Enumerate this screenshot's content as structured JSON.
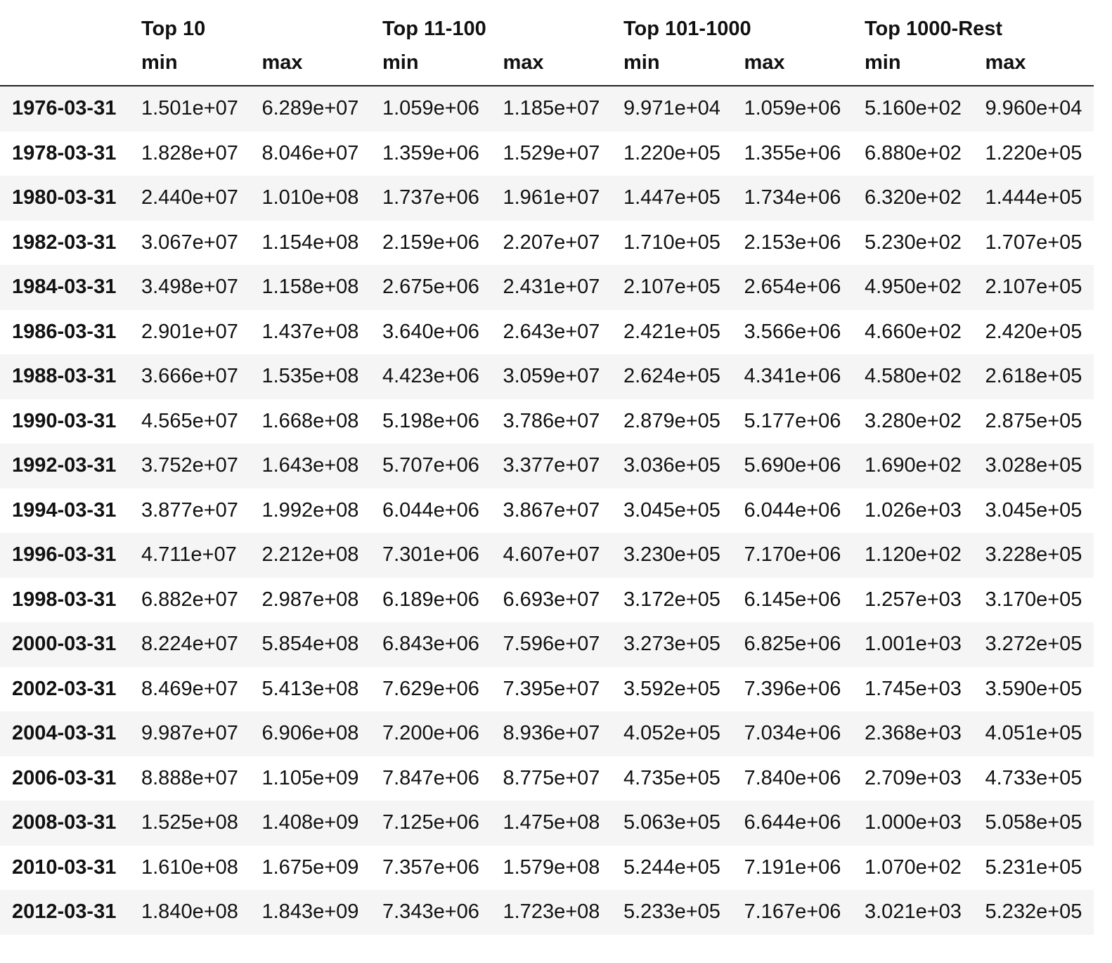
{
  "table": {
    "groups": [
      "Top 10",
      "Top 11-100",
      "Top 101-1000",
      "Top 1000-Rest"
    ],
    "subcolumns": [
      "min",
      "max",
      "min",
      "max",
      "min",
      "max",
      "min",
      "max"
    ],
    "rows": [
      {
        "index": "1976-03-31",
        "cells": [
          "1.501e+07",
          "6.289e+07",
          "1.059e+06",
          "1.185e+07",
          "9.971e+04",
          "1.059e+06",
          "5.160e+02",
          "9.960e+04"
        ]
      },
      {
        "index": "1978-03-31",
        "cells": [
          "1.828e+07",
          "8.046e+07",
          "1.359e+06",
          "1.529e+07",
          "1.220e+05",
          "1.355e+06",
          "6.880e+02",
          "1.220e+05"
        ]
      },
      {
        "index": "1980-03-31",
        "cells": [
          "2.440e+07",
          "1.010e+08",
          "1.737e+06",
          "1.961e+07",
          "1.447e+05",
          "1.734e+06",
          "6.320e+02",
          "1.444e+05"
        ]
      },
      {
        "index": "1982-03-31",
        "cells": [
          "3.067e+07",
          "1.154e+08",
          "2.159e+06",
          "2.207e+07",
          "1.710e+05",
          "2.153e+06",
          "5.230e+02",
          "1.707e+05"
        ]
      },
      {
        "index": "1984-03-31",
        "cells": [
          "3.498e+07",
          "1.158e+08",
          "2.675e+06",
          "2.431e+07",
          "2.107e+05",
          "2.654e+06",
          "4.950e+02",
          "2.107e+05"
        ]
      },
      {
        "index": "1986-03-31",
        "cells": [
          "2.901e+07",
          "1.437e+08",
          "3.640e+06",
          "2.643e+07",
          "2.421e+05",
          "3.566e+06",
          "4.660e+02",
          "2.420e+05"
        ]
      },
      {
        "index": "1988-03-31",
        "cells": [
          "3.666e+07",
          "1.535e+08",
          "4.423e+06",
          "3.059e+07",
          "2.624e+05",
          "4.341e+06",
          "4.580e+02",
          "2.618e+05"
        ]
      },
      {
        "index": "1990-03-31",
        "cells": [
          "4.565e+07",
          "1.668e+08",
          "5.198e+06",
          "3.786e+07",
          "2.879e+05",
          "5.177e+06",
          "3.280e+02",
          "2.875e+05"
        ]
      },
      {
        "index": "1992-03-31",
        "cells": [
          "3.752e+07",
          "1.643e+08",
          "5.707e+06",
          "3.377e+07",
          "3.036e+05",
          "5.690e+06",
          "1.690e+02",
          "3.028e+05"
        ]
      },
      {
        "index": "1994-03-31",
        "cells": [
          "3.877e+07",
          "1.992e+08",
          "6.044e+06",
          "3.867e+07",
          "3.045e+05",
          "6.044e+06",
          "1.026e+03",
          "3.045e+05"
        ]
      },
      {
        "index": "1996-03-31",
        "cells": [
          "4.711e+07",
          "2.212e+08",
          "7.301e+06",
          "4.607e+07",
          "3.230e+05",
          "7.170e+06",
          "1.120e+02",
          "3.228e+05"
        ]
      },
      {
        "index": "1998-03-31",
        "cells": [
          "6.882e+07",
          "2.987e+08",
          "6.189e+06",
          "6.693e+07",
          "3.172e+05",
          "6.145e+06",
          "1.257e+03",
          "3.170e+05"
        ]
      },
      {
        "index": "2000-03-31",
        "cells": [
          "8.224e+07",
          "5.854e+08",
          "6.843e+06",
          "7.596e+07",
          "3.273e+05",
          "6.825e+06",
          "1.001e+03",
          "3.272e+05"
        ]
      },
      {
        "index": "2002-03-31",
        "cells": [
          "8.469e+07",
          "5.413e+08",
          "7.629e+06",
          "7.395e+07",
          "3.592e+05",
          "7.396e+06",
          "1.745e+03",
          "3.590e+05"
        ]
      },
      {
        "index": "2004-03-31",
        "cells": [
          "9.987e+07",
          "6.906e+08",
          "7.200e+06",
          "8.936e+07",
          "4.052e+05",
          "7.034e+06",
          "2.368e+03",
          "4.051e+05"
        ]
      },
      {
        "index": "2006-03-31",
        "cells": [
          "8.888e+07",
          "1.105e+09",
          "7.847e+06",
          "8.775e+07",
          "4.735e+05",
          "7.840e+06",
          "2.709e+03",
          "4.733e+05"
        ]
      },
      {
        "index": "2008-03-31",
        "cells": [
          "1.525e+08",
          "1.408e+09",
          "7.125e+06",
          "1.475e+08",
          "5.063e+05",
          "6.644e+06",
          "1.000e+03",
          "5.058e+05"
        ]
      },
      {
        "index": "2010-03-31",
        "cells": [
          "1.610e+08",
          "1.675e+09",
          "7.357e+06",
          "1.579e+08",
          "5.244e+05",
          "7.191e+06",
          "1.070e+02",
          "5.231e+05"
        ]
      },
      {
        "index": "2012-03-31",
        "cells": [
          "1.840e+08",
          "1.843e+09",
          "7.343e+06",
          "1.723e+08",
          "5.233e+05",
          "7.167e+06",
          "3.021e+03",
          "5.232e+05"
        ]
      }
    ]
  }
}
